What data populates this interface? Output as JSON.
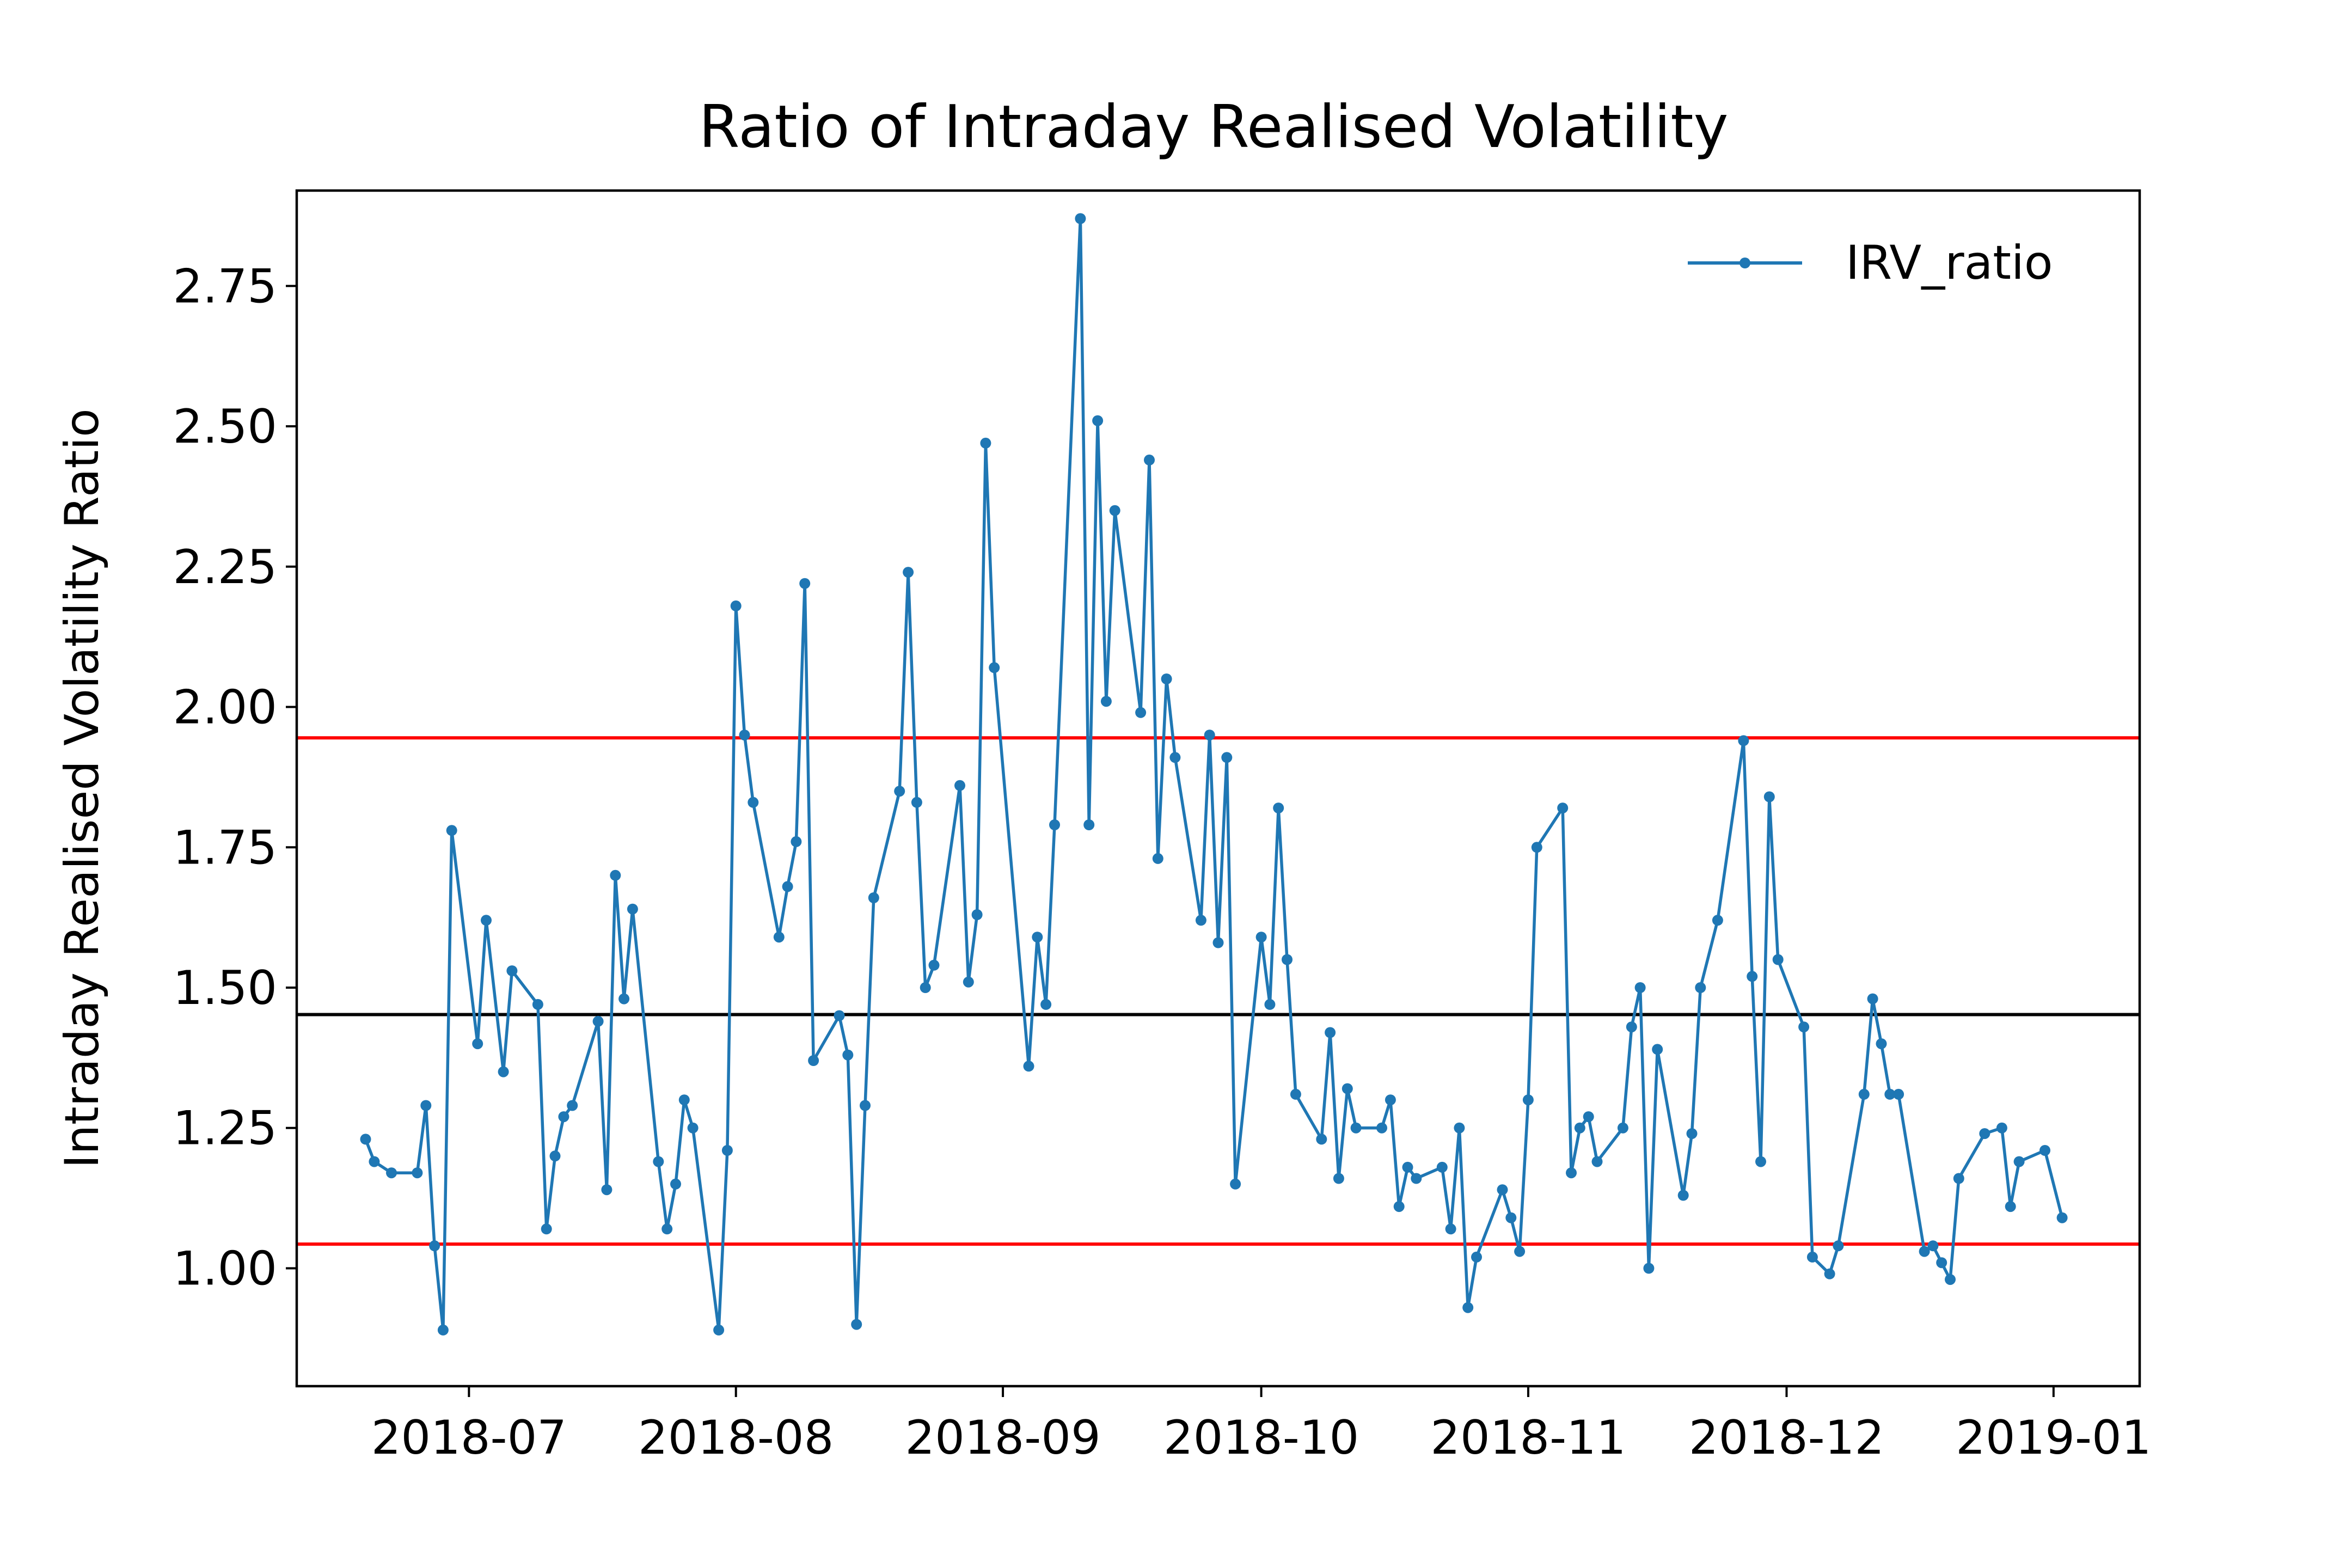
{
  "chart_data": {
    "type": "line",
    "title": "Ratio of Intraday Realised Volatility",
    "xlabel": "",
    "ylabel": "Intraday Realised Volatility Ratio",
    "x_ticks": [
      "2018-07",
      "2018-08",
      "2018-09",
      "2018-10",
      "2018-11",
      "2018-12",
      "2019-01"
    ],
    "y_ticks": [
      "1.00",
      "1.25",
      "1.50",
      "1.75",
      "2.00",
      "2.25",
      "2.50",
      "2.75"
    ],
    "xlim": [
      "2018-06-11",
      "2019-01-11"
    ],
    "ylim": [
      0.79,
      2.92
    ],
    "grid": false,
    "legend_position": "top-right",
    "reference_lines": [
      {
        "y": 1.945,
        "color": "#ff0000"
      },
      {
        "y": 1.452,
        "color": "#000000"
      },
      {
        "y": 1.043,
        "color": "#ff0000"
      }
    ],
    "series": [
      {
        "name": "IRV_ratio",
        "color": "#1f77b4",
        "points": [
          [
            "2018-06-19",
            1.23
          ],
          [
            "2018-06-20",
            1.19
          ],
          [
            "2018-06-22",
            1.17
          ],
          [
            "2018-06-25",
            1.17
          ],
          [
            "2018-06-26",
            1.29
          ],
          [
            "2018-06-27",
            1.04
          ],
          [
            "2018-06-28",
            0.89
          ],
          [
            "2018-06-29",
            1.78
          ],
          [
            "2018-07-02",
            1.4
          ],
          [
            "2018-07-03",
            1.62
          ],
          [
            "2018-07-05",
            1.35
          ],
          [
            "2018-07-06",
            1.53
          ],
          [
            "2018-07-09",
            1.47
          ],
          [
            "2018-07-10",
            1.07
          ],
          [
            "2018-07-11",
            1.2
          ],
          [
            "2018-07-12",
            1.27
          ],
          [
            "2018-07-13",
            1.29
          ],
          [
            "2018-07-16",
            1.44
          ],
          [
            "2018-07-17",
            1.14
          ],
          [
            "2018-07-18",
            1.7
          ],
          [
            "2018-07-19",
            1.48
          ],
          [
            "2018-07-20",
            1.64
          ],
          [
            "2018-07-23",
            1.19
          ],
          [
            "2018-07-24",
            1.07
          ],
          [
            "2018-07-25",
            1.15
          ],
          [
            "2018-07-26",
            1.3
          ],
          [
            "2018-07-27",
            1.25
          ],
          [
            "2018-07-30",
            0.89
          ],
          [
            "2018-07-31",
            1.21
          ],
          [
            "2018-08-01",
            2.18
          ],
          [
            "2018-08-02",
            1.95
          ],
          [
            "2018-08-03",
            1.83
          ],
          [
            "2018-08-06",
            1.59
          ],
          [
            "2018-08-07",
            1.68
          ],
          [
            "2018-08-08",
            1.76
          ],
          [
            "2018-08-09",
            2.22
          ],
          [
            "2018-08-10",
            1.37
          ],
          [
            "2018-08-13",
            1.45
          ],
          [
            "2018-08-14",
            1.38
          ],
          [
            "2018-08-15",
            0.9
          ],
          [
            "2018-08-16",
            1.29
          ],
          [
            "2018-08-17",
            1.66
          ],
          [
            "2018-08-20",
            1.85
          ],
          [
            "2018-08-21",
            2.24
          ],
          [
            "2018-08-22",
            1.83
          ],
          [
            "2018-08-23",
            1.5
          ],
          [
            "2018-08-24",
            1.54
          ],
          [
            "2018-08-27",
            1.86
          ],
          [
            "2018-08-28",
            1.51
          ],
          [
            "2018-08-29",
            1.63
          ],
          [
            "2018-08-30",
            2.47
          ],
          [
            "2018-08-31",
            2.07
          ],
          [
            "2018-09-04",
            1.36
          ],
          [
            "2018-09-05",
            1.59
          ],
          [
            "2018-09-06",
            1.47
          ],
          [
            "2018-09-07",
            1.79
          ],
          [
            "2018-09-10",
            2.87
          ],
          [
            "2018-09-11",
            1.79
          ],
          [
            "2018-09-12",
            2.51
          ],
          [
            "2018-09-13",
            2.01
          ],
          [
            "2018-09-14",
            2.35
          ],
          [
            "2018-09-17",
            1.99
          ],
          [
            "2018-09-18",
            2.44
          ],
          [
            "2018-09-19",
            1.73
          ],
          [
            "2018-09-20",
            2.05
          ],
          [
            "2018-09-21",
            1.91
          ],
          [
            "2018-09-24",
            1.62
          ],
          [
            "2018-09-25",
            1.95
          ],
          [
            "2018-09-26",
            1.58
          ],
          [
            "2018-09-27",
            1.91
          ],
          [
            "2018-09-28",
            1.15
          ],
          [
            "2018-10-01",
            1.59
          ],
          [
            "2018-10-02",
            1.47
          ],
          [
            "2018-10-03",
            1.82
          ],
          [
            "2018-10-04",
            1.55
          ],
          [
            "2018-10-05",
            1.31
          ],
          [
            "2018-10-08",
            1.23
          ],
          [
            "2018-10-09",
            1.42
          ],
          [
            "2018-10-10",
            1.16
          ],
          [
            "2018-10-11",
            1.32
          ],
          [
            "2018-10-12",
            1.25
          ],
          [
            "2018-10-15",
            1.25
          ],
          [
            "2018-10-16",
            1.3
          ],
          [
            "2018-10-17",
            1.11
          ],
          [
            "2018-10-18",
            1.18
          ],
          [
            "2018-10-19",
            1.16
          ],
          [
            "2018-10-22",
            1.18
          ],
          [
            "2018-10-23",
            1.07
          ],
          [
            "2018-10-24",
            1.25
          ],
          [
            "2018-10-25",
            0.93
          ],
          [
            "2018-10-26",
            1.02
          ],
          [
            "2018-10-29",
            1.14
          ],
          [
            "2018-10-30",
            1.09
          ],
          [
            "2018-10-31",
            1.03
          ],
          [
            "2018-11-01",
            1.3
          ],
          [
            "2018-11-02",
            1.75
          ],
          [
            "2018-11-05",
            1.82
          ],
          [
            "2018-11-06",
            1.17
          ],
          [
            "2018-11-07",
            1.25
          ],
          [
            "2018-11-08",
            1.27
          ],
          [
            "2018-11-09",
            1.19
          ],
          [
            "2018-11-12",
            1.25
          ],
          [
            "2018-11-13",
            1.43
          ],
          [
            "2018-11-14",
            1.5
          ],
          [
            "2018-11-15",
            1.0
          ],
          [
            "2018-11-16",
            1.39
          ],
          [
            "2018-11-19",
            1.13
          ],
          [
            "2018-11-20",
            1.24
          ],
          [
            "2018-11-21",
            1.5
          ],
          [
            "2018-11-23",
            1.62
          ],
          [
            "2018-11-26",
            1.94
          ],
          [
            "2018-11-27",
            1.52
          ],
          [
            "2018-11-28",
            1.19
          ],
          [
            "2018-11-29",
            1.84
          ],
          [
            "2018-11-30",
            1.55
          ],
          [
            "2018-12-03",
            1.43
          ],
          [
            "2018-12-04",
            1.02
          ],
          [
            "2018-12-06",
            0.99
          ],
          [
            "2018-12-07",
            1.04
          ],
          [
            "2018-12-10",
            1.31
          ],
          [
            "2018-12-11",
            1.48
          ],
          [
            "2018-12-12",
            1.4
          ],
          [
            "2018-12-13",
            1.31
          ],
          [
            "2018-12-14",
            1.31
          ],
          [
            "2018-12-17",
            1.03
          ],
          [
            "2018-12-18",
            1.04
          ],
          [
            "2018-12-19",
            1.01
          ],
          [
            "2018-12-20",
            0.98
          ],
          [
            "2018-12-21",
            1.16
          ],
          [
            "2018-12-24",
            1.24
          ],
          [
            "2018-12-26",
            1.25
          ],
          [
            "2018-12-27",
            1.11
          ],
          [
            "2018-12-28",
            1.19
          ],
          [
            "2018-12-31",
            1.21
          ],
          [
            "2019-01-02",
            1.09
          ]
        ]
      }
    ]
  }
}
